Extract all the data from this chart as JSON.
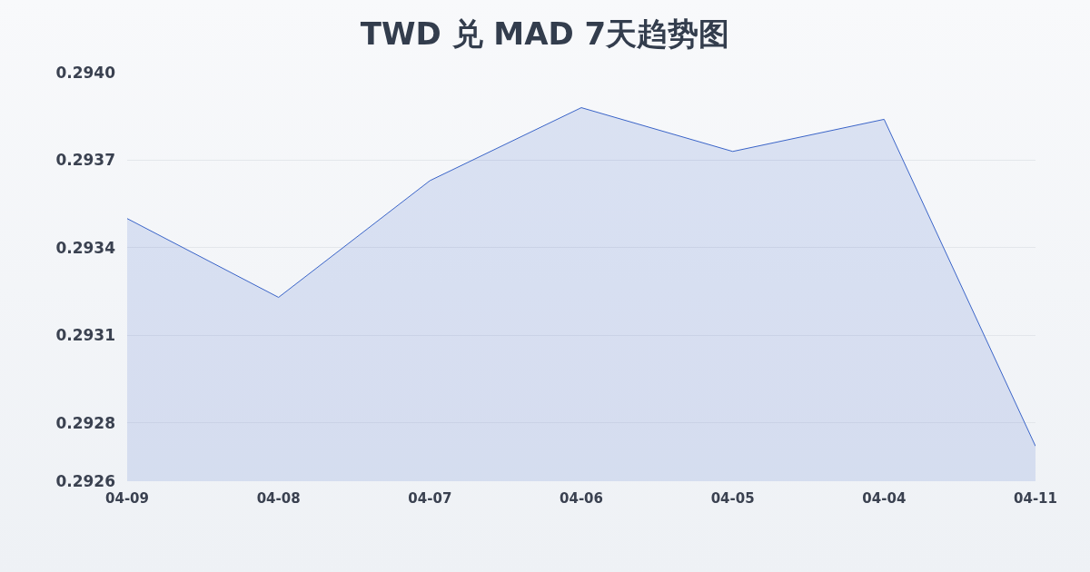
{
  "chart_data": {
    "type": "area",
    "title": "TWD 兑 MAD 7天趋势图",
    "categories": [
      "04-09",
      "04-08",
      "04-07",
      "04-06",
      "04-05",
      "04-04",
      "04-11"
    ],
    "series": [
      {
        "color": "#3a64c8",
        "values": [
          0.2935,
          0.29323,
          0.29363,
          0.29388,
          0.29373,
          0.29384,
          0.29272
        ]
      }
    ],
    "ylim": [
      0.2926,
      0.294
    ],
    "yticks": [
      0.2926,
      {
        "value": 0.2928,
        "label": "0.2928"
      },
      0.2931,
      0.2934,
      0.2937,
      {
        "value": 0.294,
        "label": "0.2940"
      }
    ],
    "grid": "y"
  }
}
